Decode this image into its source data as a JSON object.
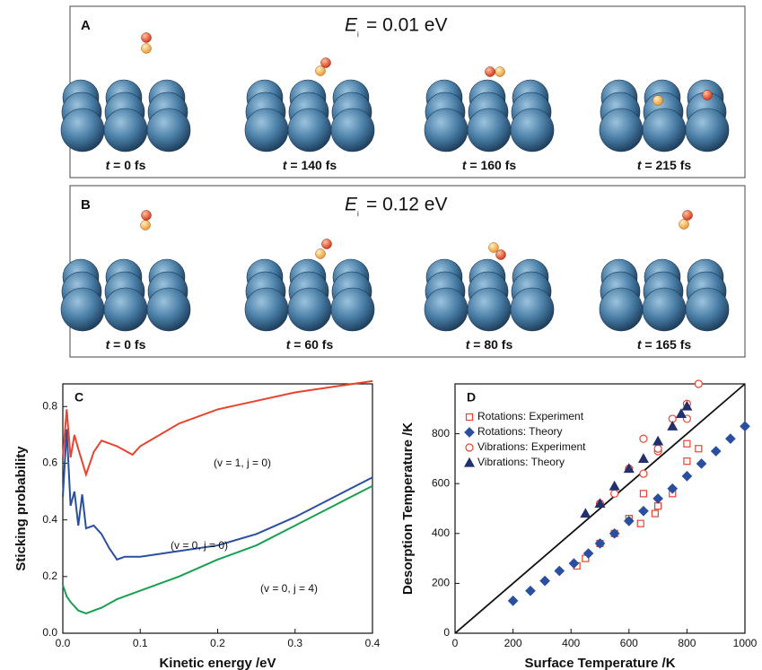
{
  "panels": [
    {
      "label": "A",
      "energy_symbol": "E",
      "energy_subscript": "i",
      "energy_value": "= 0.01 eV",
      "frames": [
        {
          "t": "t",
          "time": "= 0 fs"
        },
        {
          "t": "t",
          "time": "= 140 fs"
        },
        {
          "t": "t",
          "time": "= 160 fs"
        },
        {
          "t": "t",
          "time": "= 215 fs"
        }
      ]
    },
    {
      "label": "B",
      "energy_symbol": "E",
      "energy_subscript": "i",
      "energy_value": "= 0.12 eV",
      "frames": [
        {
          "t": "t",
          "time": "= 0 fs"
        },
        {
          "t": "t",
          "time": "= 60 fs"
        },
        {
          "t": "t",
          "time": "= 80 fs"
        },
        {
          "t": "t",
          "time": "= 165 fs"
        }
      ]
    }
  ],
  "chart_data": [
    {
      "type": "line",
      "label": "C",
      "xlabel": "Kinetic energy  /eV",
      "ylabel": "Sticking probability",
      "xlim": [
        0,
        0.4
      ],
      "ylim": [
        0,
        0.88
      ],
      "xticks": [
        {
          "value": 0,
          "label": "0.0"
        },
        0.1,
        0.2,
        0.3,
        0.4
      ],
      "yticks": [
        {
          "value": 0,
          "label": "0.0"
        },
        0.2,
        0.4,
        0.6,
        0.8
      ],
      "series": [
        {
          "name": "(v = 1, j = 0)",
          "color": "#e8432e",
          "x": [
            0,
            0.005,
            0.01,
            0.015,
            0.02,
            0.03,
            0.04,
            0.05,
            0.07,
            0.09,
            0.1,
            0.15,
            0.2,
            0.25,
            0.3,
            0.35,
            0.4
          ],
          "values": [
            0.62,
            0.79,
            0.62,
            0.7,
            0.65,
            0.56,
            0.64,
            0.68,
            0.66,
            0.63,
            0.66,
            0.74,
            0.79,
            0.82,
            0.85,
            0.87,
            0.89
          ]
        },
        {
          "name": "(v = 0, j = 0)",
          "color": "#2b4fa0",
          "x": [
            0,
            0.005,
            0.01,
            0.015,
            0.02,
            0.025,
            0.03,
            0.04,
            0.05,
            0.06,
            0.07,
            0.08,
            0.1,
            0.15,
            0.2,
            0.25,
            0.3,
            0.35,
            0.4
          ],
          "values": [
            0.48,
            0.72,
            0.45,
            0.5,
            0.38,
            0.49,
            0.37,
            0.38,
            0.35,
            0.3,
            0.26,
            0.27,
            0.27,
            0.29,
            0.31,
            0.35,
            0.41,
            0.48,
            0.55
          ]
        },
        {
          "name": "(v = 0, j = 4)",
          "color": "#18a050",
          "x": [
            0,
            0.005,
            0.01,
            0.02,
            0.03,
            0.04,
            0.05,
            0.07,
            0.1,
            0.15,
            0.2,
            0.25,
            0.3,
            0.35,
            0.4
          ],
          "values": [
            0.17,
            0.13,
            0.11,
            0.08,
            0.07,
            0.08,
            0.09,
            0.12,
            0.15,
            0.2,
            0.26,
            0.31,
            0.38,
            0.45,
            0.52
          ]
        }
      ]
    },
    {
      "type": "scatter",
      "label": "D",
      "xlabel": "Surface Temperature /K",
      "ylabel": "Desorption Temperature /K",
      "xlim": [
        0,
        1000
      ],
      "ylim": [
        0,
        1000
      ],
      "xticks": [
        0,
        200,
        400,
        600,
        800,
        1000
      ],
      "yticks": [
        0,
        200,
        400,
        600,
        800
      ],
      "diagonal": true,
      "legend": "upper-left",
      "series": [
        {
          "name": "Rotations: Experiment",
          "color": "#e8432e",
          "marker": "square",
          "filled": false,
          "x": [
            420,
            450,
            500,
            550,
            600,
            640,
            650,
            690,
            700,
            750,
            800,
            800,
            840
          ],
          "values": [
            270,
            300,
            360,
            400,
            460,
            440,
            560,
            480,
            510,
            560,
            690,
            760,
            740
          ]
        },
        {
          "name": "Rotations: Theory",
          "color": "#2b4fa0",
          "marker": "diamond",
          "filled": true,
          "x": [
            200,
            260,
            310,
            360,
            410,
            460,
            500,
            550,
            600,
            650,
            700,
            750,
            800,
            850,
            900,
            950,
            1000
          ],
          "values": [
            130,
            170,
            210,
            250,
            280,
            320,
            360,
            400,
            450,
            490,
            540,
            580,
            630,
            680,
            730,
            780,
            830
          ]
        },
        {
          "name": "Vibrations: Experiment",
          "color": "#e8432e",
          "marker": "circle",
          "filled": false,
          "x": [
            500,
            550,
            600,
            650,
            650,
            700,
            700,
            750,
            800,
            800,
            840
          ],
          "values": [
            520,
            560,
            660,
            640,
            780,
            730,
            740,
            860,
            920,
            860,
            1000
          ]
        },
        {
          "name": "Vibrations: Theory",
          "color": "#23306e",
          "marker": "triangle",
          "filled": true,
          "x": [
            450,
            500,
            550,
            600,
            650,
            700,
            750,
            780,
            800
          ],
          "values": [
            480,
            520,
            590,
            660,
            700,
            770,
            830,
            880,
            910
          ]
        }
      ]
    }
  ]
}
